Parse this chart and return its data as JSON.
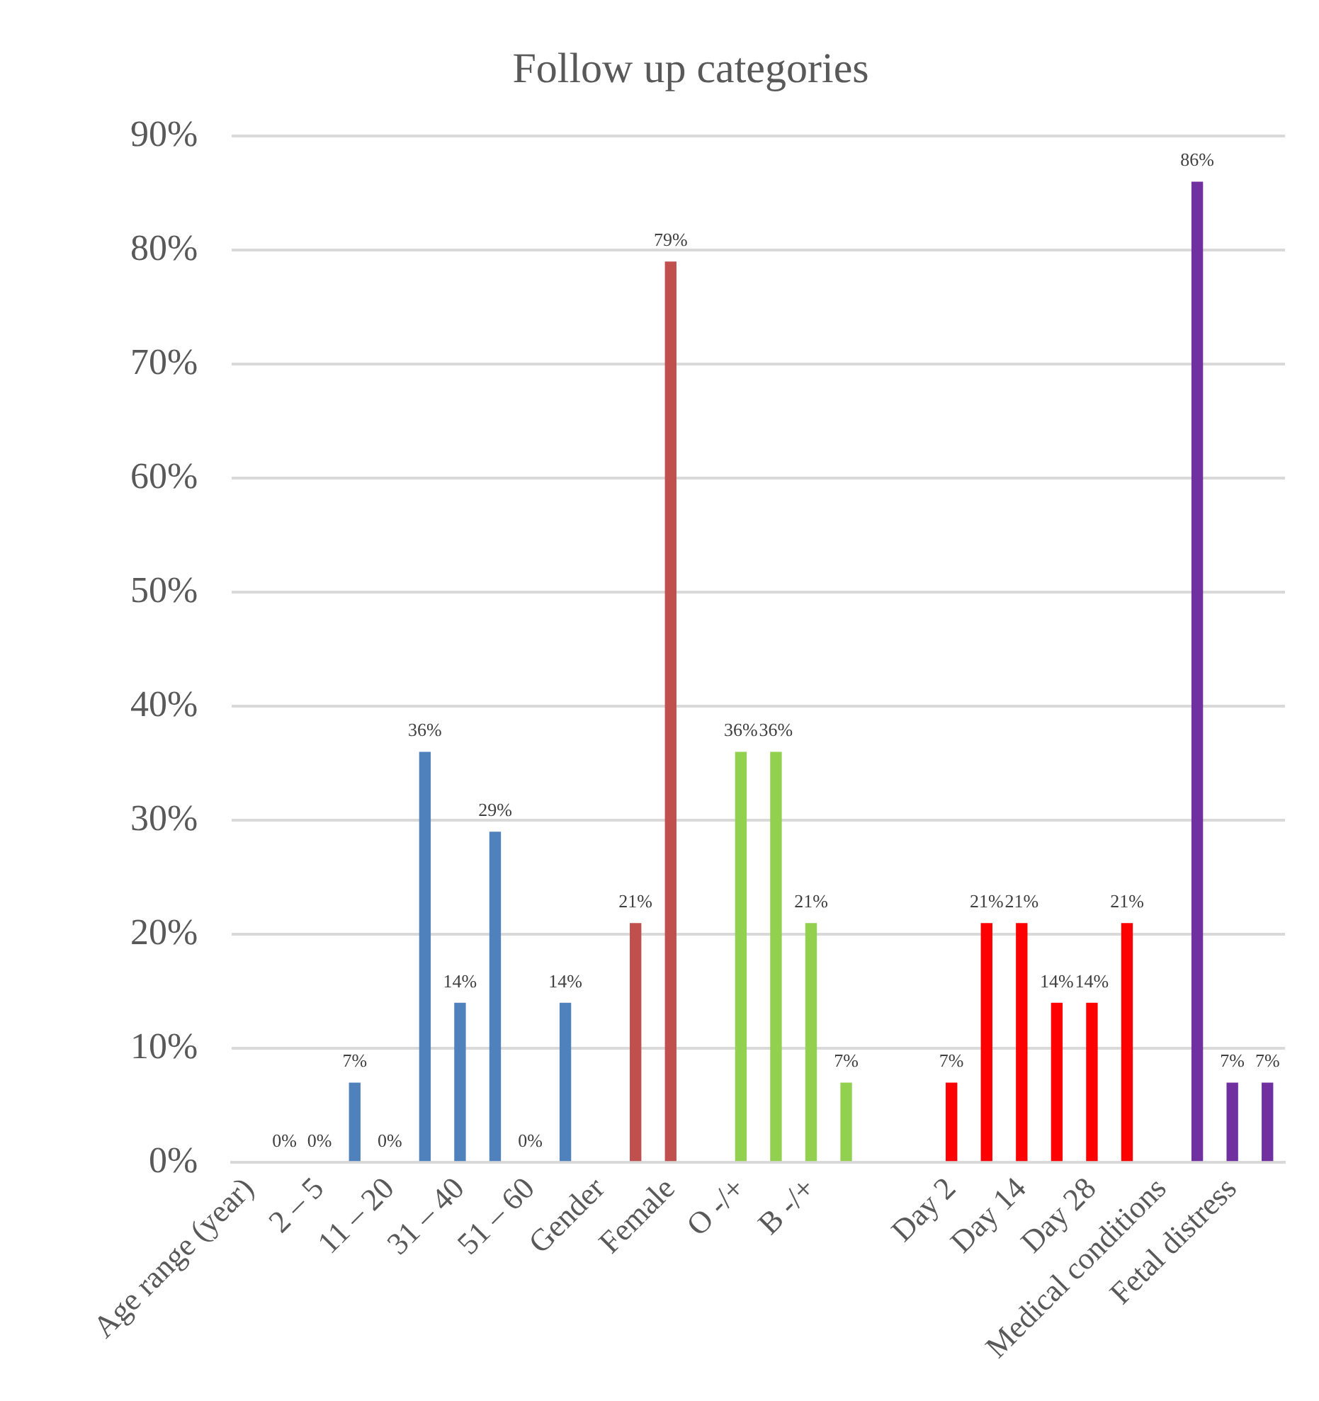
{
  "chart_data": {
    "type": "bar",
    "title": "Follow up categories",
    "categories": [
      "Age range (year)",
      null,
      "2 – 5",
      null,
      "11 – 20",
      null,
      "31 – 40",
      null,
      "51 – 60",
      null,
      "Gender",
      null,
      "Female",
      null,
      "O -/+",
      null,
      "B -/+",
      null,
      null,
      null,
      "Day 2",
      null,
      "Day 14",
      null,
      "Day 28",
      null,
      "Medical conditions",
      null,
      "Fetal distress",
      null
    ],
    "values": [
      null,
      0,
      0,
      7,
      0,
      36,
      14,
      29,
      0,
      14,
      null,
      21,
      79,
      null,
      36,
      36,
      21,
      7,
      null,
      null,
      7,
      21,
      21,
      14,
      14,
      21,
      null,
      86,
      7,
      7
    ],
    "value_labels": [
      null,
      "0%",
      "0%",
      "7%",
      "0%",
      "36%",
      "14%",
      "29%",
      "0%",
      "14%",
      null,
      "21%",
      "79%",
      null,
      "36%",
      "36%",
      "21%",
      "7%",
      null,
      null,
      "7%",
      "21%",
      "21%",
      "14%",
      "14%",
      "21%",
      null,
      "86%",
      "7%",
      "7%"
    ],
    "colors": [
      "#4f81bd",
      "#4f81bd",
      "#4f81bd",
      "#4f81bd",
      "#4f81bd",
      "#4f81bd",
      "#4f81bd",
      "#4f81bd",
      "#4f81bd",
      "#4f81bd",
      "#c0504d",
      "#c0504d",
      "#c0504d",
      "#92d050",
      "#92d050",
      "#92d050",
      "#92d050",
      "#92d050",
      "#ff0000",
      "#ff0000",
      "#ff0000",
      "#ff0000",
      "#ff0000",
      "#ff0000",
      "#ff0000",
      "#ff0000",
      "#7030a0",
      "#7030a0",
      "#7030a0",
      "#7030a0"
    ],
    "ylim": [
      0,
      90
    ],
    "yticks": [
      {
        "value": 0,
        "label": "0%"
      },
      {
        "value": 10,
        "label": "10%"
      },
      {
        "value": 20,
        "label": "20%"
      },
      {
        "value": 30,
        "label": "30%"
      },
      {
        "value": 40,
        "label": "40%"
      },
      {
        "value": 50,
        "label": "50%"
      },
      {
        "value": 60,
        "label": "60%"
      },
      {
        "value": 70,
        "label": "70%"
      },
      {
        "value": 80,
        "label": "80%"
      },
      {
        "value": 90,
        "label": "90%"
      }
    ],
    "grid": "y",
    "legend": false
  }
}
